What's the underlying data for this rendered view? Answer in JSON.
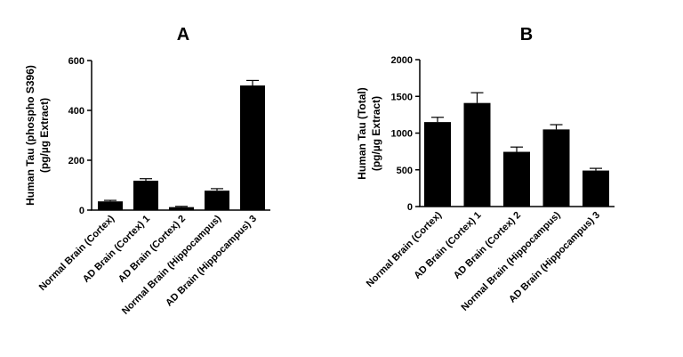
{
  "chart_data": [
    {
      "panel": "A",
      "type": "bar",
      "ylabel_lines": [
        "Human Tau (phospho S396)",
        "(pg/µg Extract)"
      ],
      "categories": [
        "Normal Brain (Cortex)",
        "AD Brain (Cortex) 1",
        "AD Brain (Cortex) 2",
        "Normal Brain (Hippocampus)",
        "AD Brain (Hippocampus) 3"
      ],
      "values": [
        35,
        118,
        12,
        78,
        500
      ],
      "errors": [
        4,
        8,
        3,
        8,
        20
      ],
      "ylim": [
        0,
        600
      ],
      "yticks": [
        0,
        200,
        400,
        600
      ],
      "bar_color": "#000000",
      "grid": false
    },
    {
      "panel": "B",
      "type": "bar",
      "ylabel_lines": [
        "Human Tau (Total)",
        "(pg/µg Extract)"
      ],
      "categories": [
        "Normal Brain (Cortex)",
        "AD Brain (Cortex) 1",
        "AD Brain (Cortex) 2",
        "Normal Brain (Hippocampus)",
        "AD Brain (Hippocampus) 3"
      ],
      "values": [
        1150,
        1410,
        745,
        1050,
        490
      ],
      "errors": [
        65,
        140,
        65,
        65,
        30
      ],
      "ylim": [
        0,
        2000
      ],
      "yticks": [
        0,
        500,
        1000,
        1500,
        2000
      ],
      "bar_color": "#000000",
      "grid": false
    }
  ]
}
